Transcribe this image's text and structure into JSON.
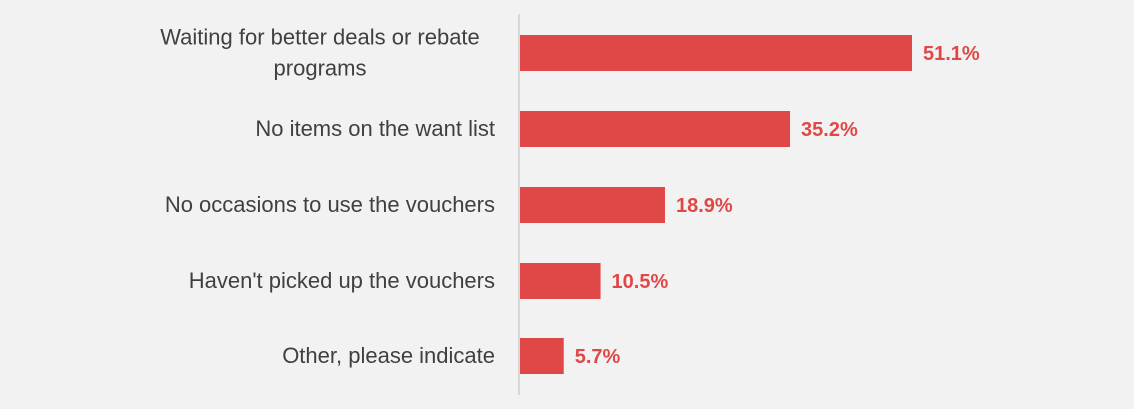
{
  "chart_data": {
    "type": "bar",
    "orientation": "horizontal",
    "categories": [
      [
        "Waiting for better deals or rebate",
        "programs"
      ],
      [
        "No items on the want list"
      ],
      [
        "No occasions to use the vouchers"
      ],
      [
        "Haven't picked up the vouchers"
      ],
      [
        "Other, please indicate"
      ]
    ],
    "values": [
      51.1,
      35.2,
      18.9,
      10.5,
      5.7
    ],
    "value_labels": [
      "51.1%",
      "35.2%",
      "18.9%",
      "10.5%",
      "5.7%"
    ],
    "title": "",
    "xlabel": "",
    "ylabel": "",
    "xlim": [
      0,
      80
    ],
    "grid": false,
    "legend": "none",
    "bar_color": "#e04848",
    "label_color": "#e04848"
  }
}
